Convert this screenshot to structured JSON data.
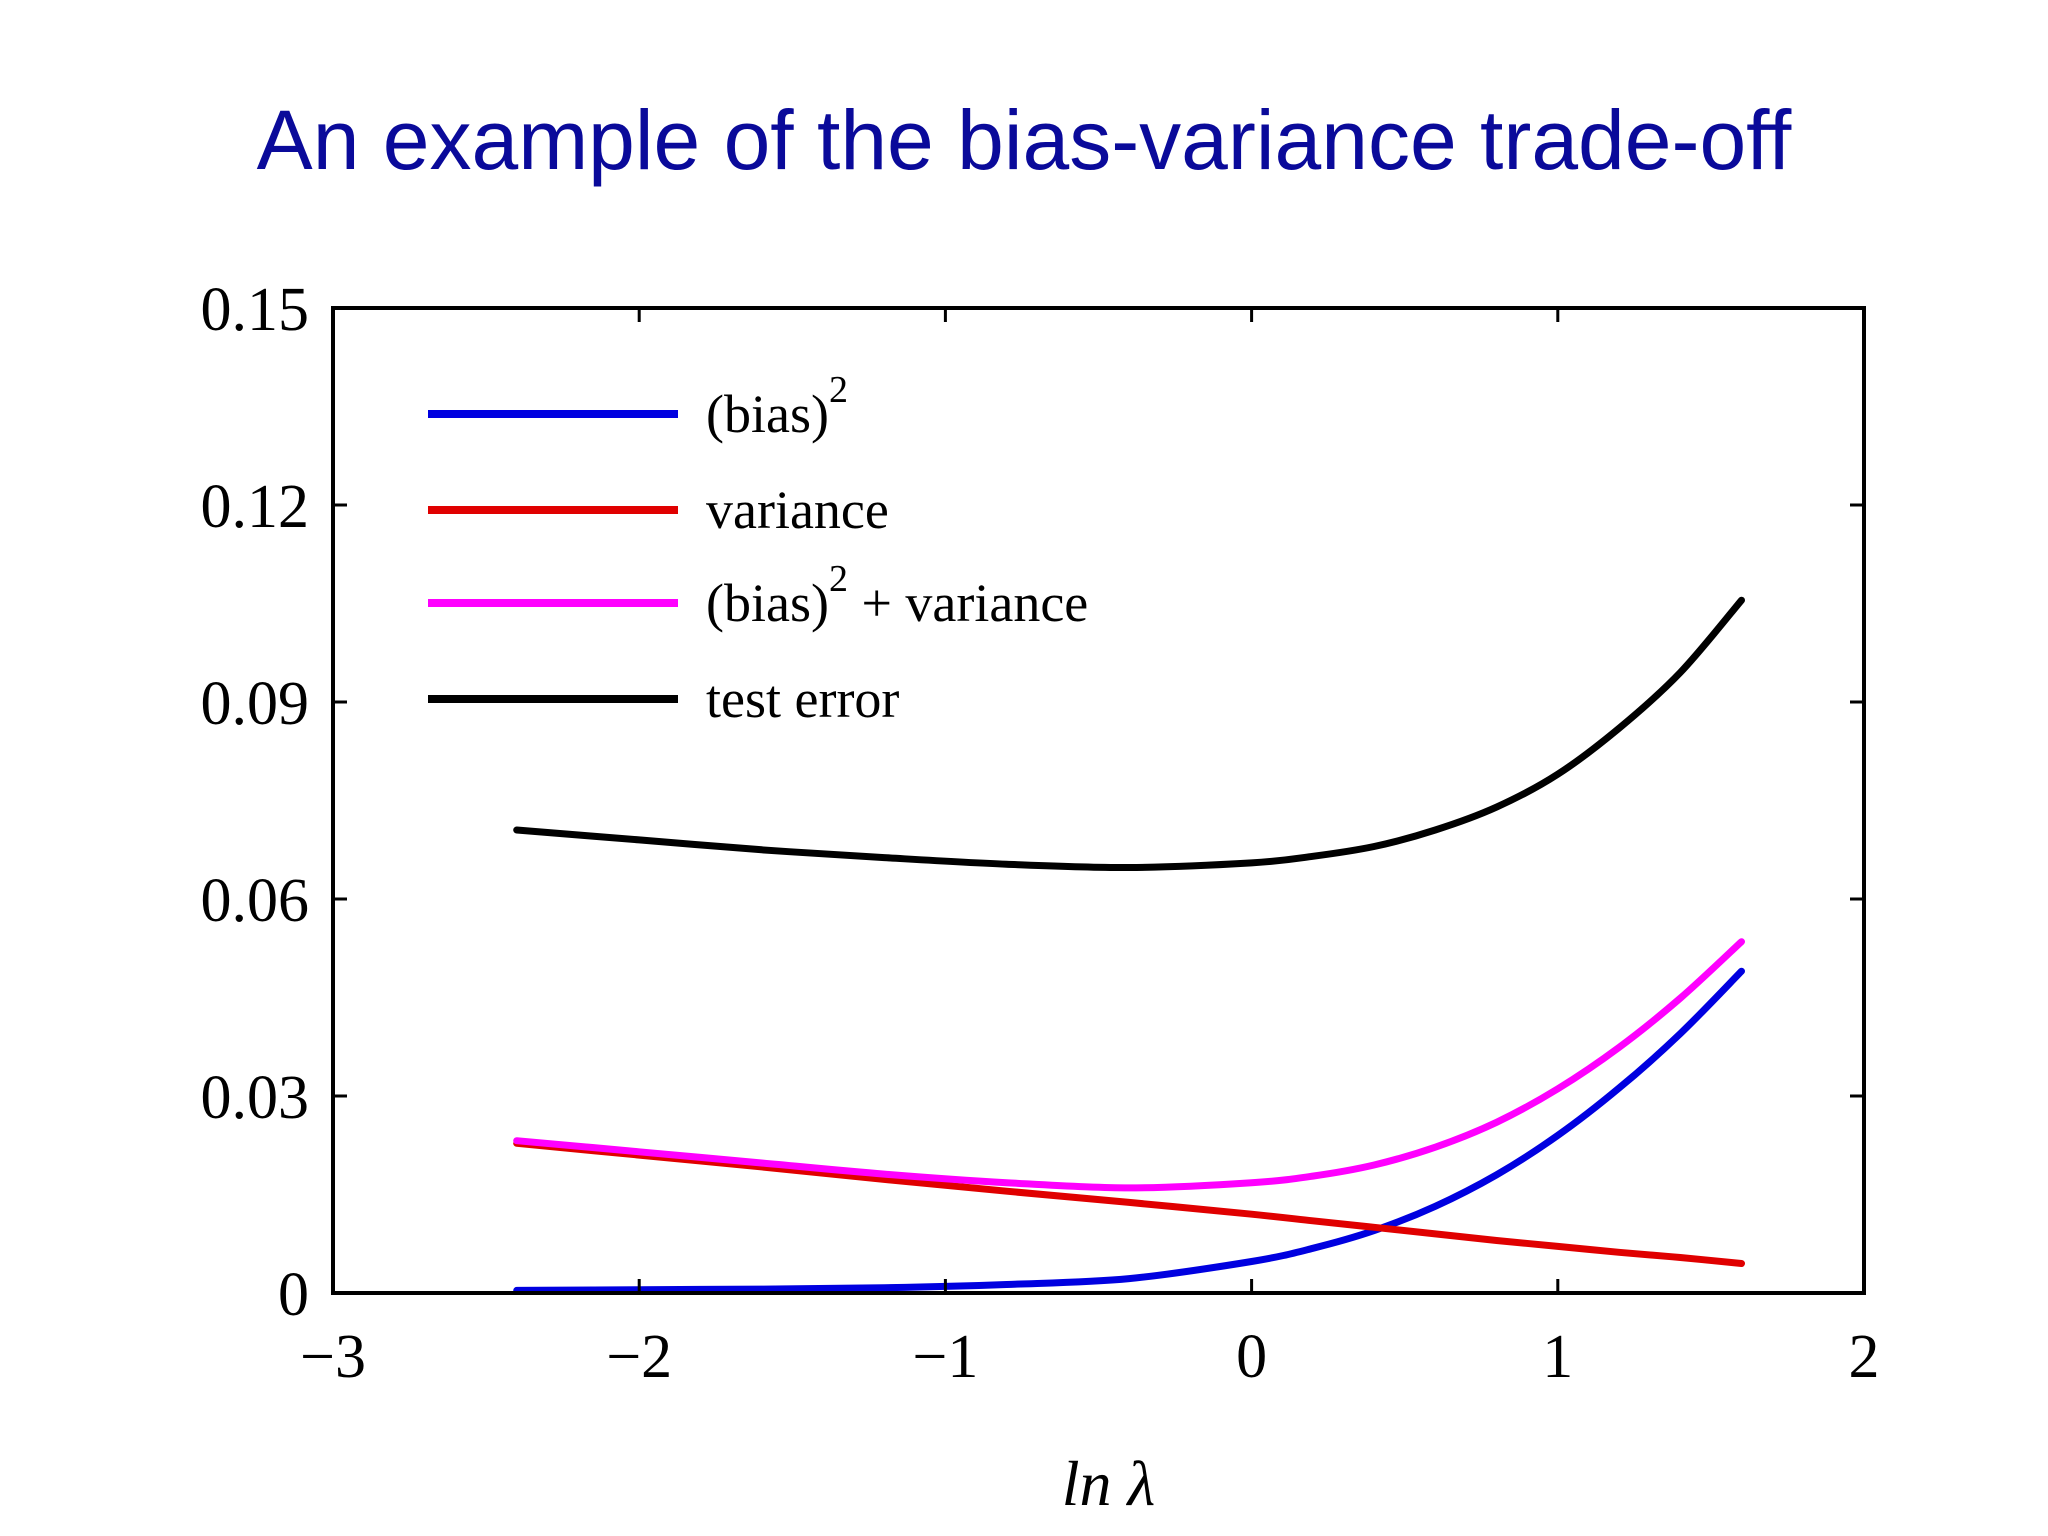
{
  "slide": {
    "title": "An example of the bias-variance trade-off"
  },
  "chart_data": {
    "type": "line",
    "xlabel": "ln λ",
    "ylabel": "",
    "xlim": [
      -3,
      2
    ],
    "ylim": [
      0,
      0.15
    ],
    "xticks": [
      -3,
      -2,
      -1,
      0,
      1,
      2
    ],
    "xtick_labels": [
      "−3",
      "−2",
      "−1",
      "0",
      "1",
      "2"
    ],
    "yticks": [
      0,
      0.03,
      0.06,
      0.09,
      0.12,
      0.15
    ],
    "ytick_labels": [
      "0",
      "0.03",
      "0.06",
      "0.09",
      "0.12",
      "0.15"
    ],
    "grid": false,
    "legend_position": "top-left",
    "x": [
      -2.4,
      -2.0,
      -1.6,
      -1.2,
      -0.8,
      -0.4,
      0.0,
      0.2,
      0.4,
      0.6,
      0.8,
      1.0,
      1.2,
      1.4,
      1.6
    ],
    "series": [
      {
        "name": "(bias)",
        "name_superscript": "2",
        "color": "#0000e0",
        "values": [
          0.0004,
          0.0005,
          0.0006,
          0.0008,
          0.0013,
          0.0022,
          0.0048,
          0.0068,
          0.0095,
          0.0132,
          0.018,
          0.024,
          0.0312,
          0.0395,
          0.049
        ]
      },
      {
        "name": "variance",
        "color": "#e00000",
        "values": [
          0.0228,
          0.021,
          0.0192,
          0.0173,
          0.0155,
          0.0138,
          0.012,
          0.011,
          0.01,
          0.009,
          0.008,
          0.0071,
          0.0062,
          0.0054,
          0.0045
        ]
      },
      {
        "name": "(bias)",
        "name_superscript": "2",
        "name_suffix": " + variance",
        "color": "#ff00ff",
        "values": [
          0.0232,
          0.0215,
          0.0198,
          0.0181,
          0.0168,
          0.016,
          0.0168,
          0.0178,
          0.0195,
          0.0222,
          0.026,
          0.0311,
          0.0374,
          0.0449,
          0.0535
        ]
      },
      {
        "name": "test error",
        "color": "#000000",
        "values": [
          0.0705,
          0.069,
          0.0675,
          0.0663,
          0.0653,
          0.0648,
          0.0655,
          0.0665,
          0.068,
          0.0705,
          0.074,
          0.079,
          0.086,
          0.0945,
          0.1055
        ]
      }
    ]
  }
}
